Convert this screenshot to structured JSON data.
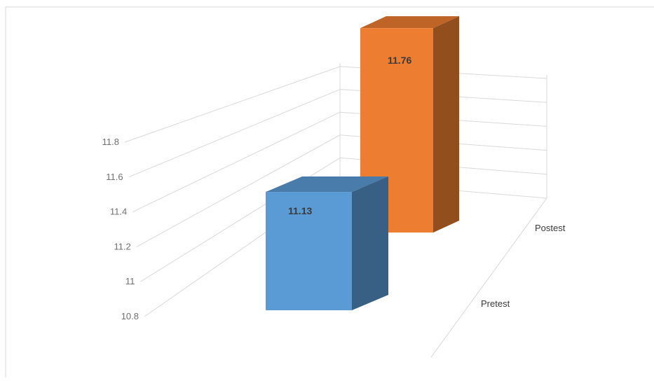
{
  "chart_data": {
    "type": "bar",
    "projection": "3d",
    "categories": [
      "Pretest",
      "Postest"
    ],
    "values": [
      11.13,
      11.76
    ],
    "data_labels": [
      "11.13",
      "11.76"
    ],
    "colors": [
      "#5b9bd5",
      "#ed7d31"
    ],
    "yticks": [
      10.8,
      11,
      11.2,
      11.4,
      11.6,
      11.8
    ],
    "ytick_labels": [
      "10.8",
      "11",
      "11.2",
      "11.4",
      "11.6",
      "11.8"
    ],
    "ylim": [
      10.8,
      11.8
    ],
    "grid": true,
    "legend": "none",
    "title": "",
    "xlabel": "",
    "ylabel": ""
  }
}
